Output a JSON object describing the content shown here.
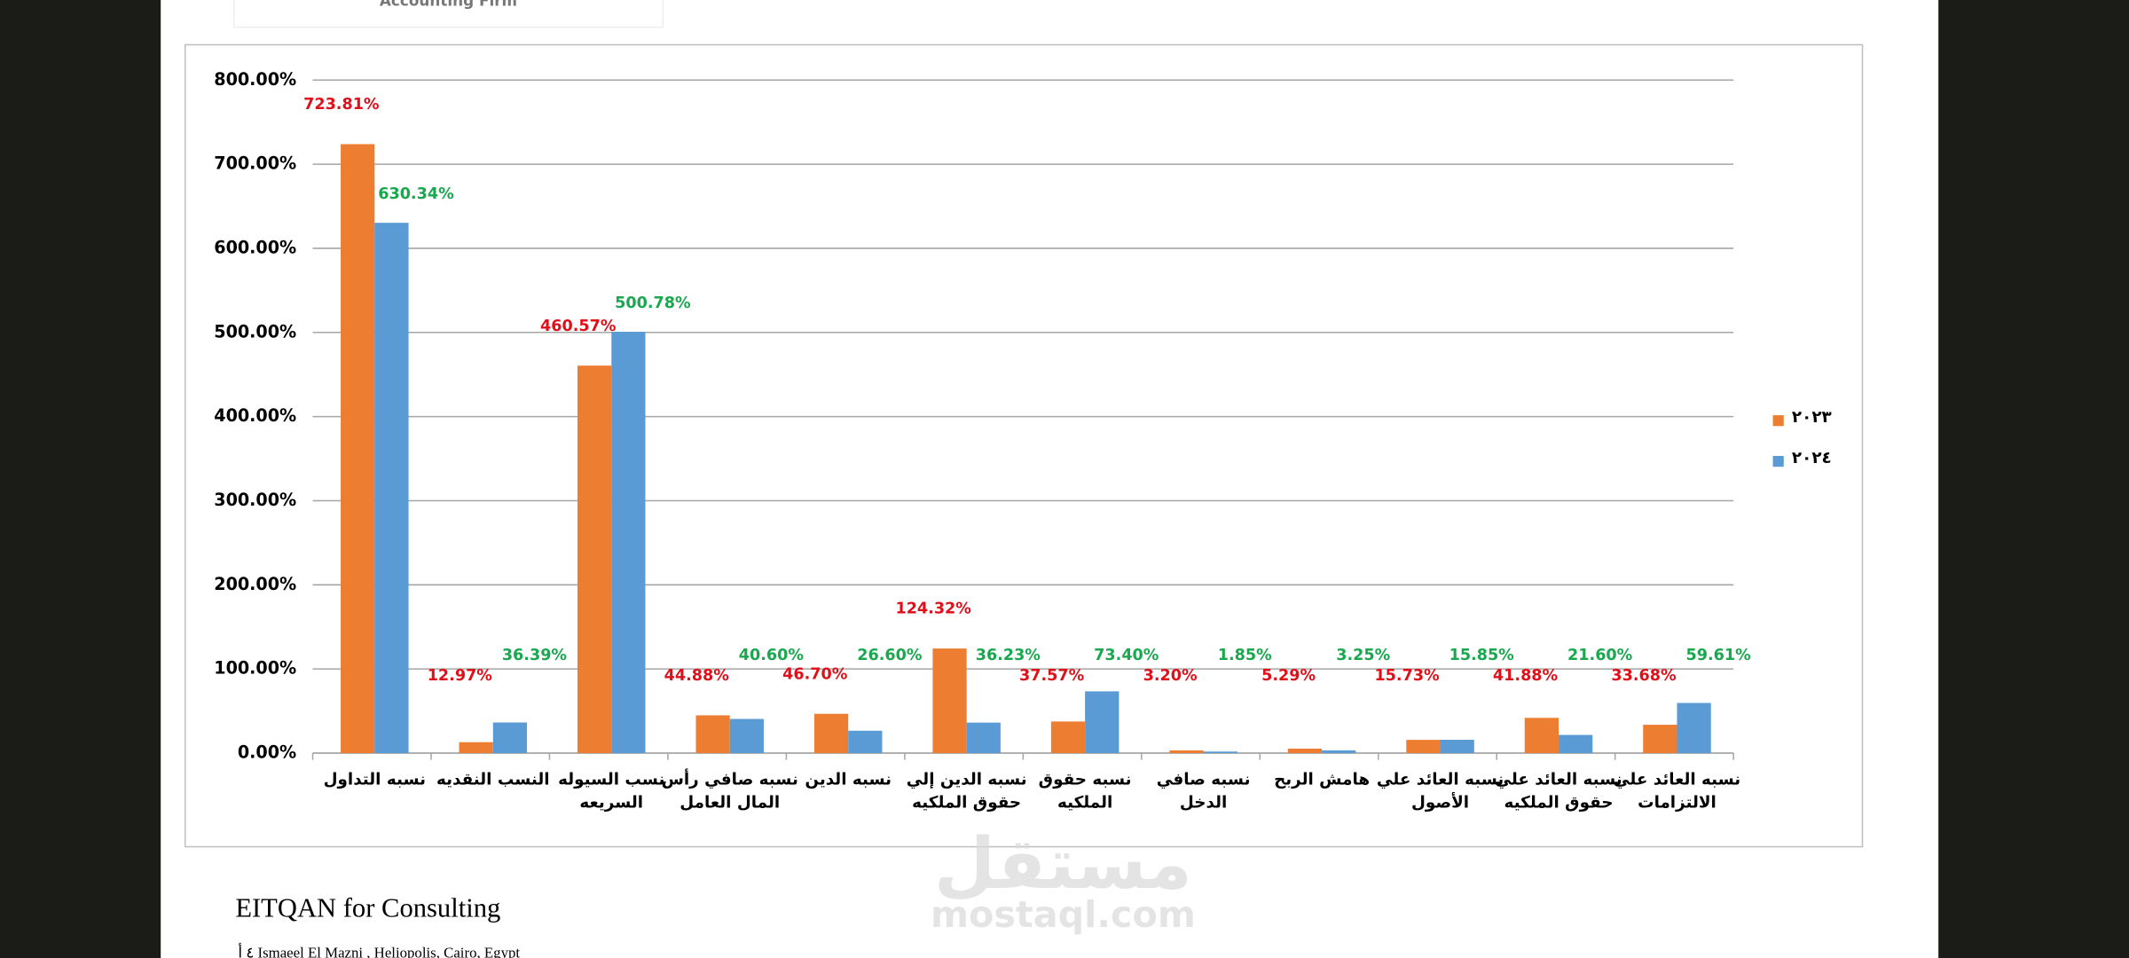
{
  "header": {
    "text": "Accounting Firm"
  },
  "chart_data": {
    "type": "bar",
    "categories": [
      [
        "نسبه التداول"
      ],
      [
        "النسب النقديه"
      ],
      [
        "نسب السيوله",
        "السريعه"
      ],
      [
        "نسبه صافي رأس",
        "المال العامل"
      ],
      [
        "نسبه الدين"
      ],
      [
        "نسبه الدين إلي",
        "حقوق الملكيه"
      ],
      [
        "نسبه حقوق",
        "الملكيه"
      ],
      [
        "نسبه صافي",
        "الدخل"
      ],
      [
        "هامش الربح"
      ],
      [
        "نسبه العائد علي",
        "الأصول"
      ],
      [
        "نسبه العائد علي",
        "حقوق الملكيه"
      ],
      [
        "نسبه العائد علي",
        "الالتزامات"
      ]
    ],
    "series": [
      {
        "name": "٢٠٢٣",
        "color": "#ed7d31",
        "label_color": "#e0101a",
        "values": [
          723.81,
          12.97,
          460.57,
          44.88,
          46.7,
          124.32,
          37.57,
          3.2,
          5.29,
          15.73,
          41.88,
          33.68
        ],
        "value_labels": [
          "723.81%",
          "12.97%",
          "460.57%",
          "44.88%",
          "46.70%",
          "124.32%",
          "37.57%",
          "3.20%",
          "5.29%",
          "15.73%",
          "41.88%",
          "33.68%"
        ]
      },
      {
        "name": "٢٠٢٤",
        "color": "#5b9bd5",
        "label_color": "#1aa84f",
        "values": [
          630.34,
          36.39,
          500.78,
          40.6,
          26.6,
          36.23,
          73.4,
          1.85,
          3.25,
          15.85,
          21.6,
          59.61
        ],
        "value_labels": [
          "630.34%",
          "36.39%",
          "500.78%",
          "40.60%",
          "26.60%",
          "36.23%",
          "73.40%",
          "1.85%",
          "3.25%",
          "15.85%",
          "21.60%",
          "59.61%"
        ]
      }
    ],
    "ylim": [
      0,
      800
    ],
    "yticks": [
      {
        "value": 0,
        "label": "0.00%"
      },
      {
        "value": 100,
        "label": "100.00%"
      },
      {
        "value": 200,
        "label": "200.00%"
      },
      {
        "value": 300,
        "label": "300.00%"
      },
      {
        "value": 400,
        "label": "400.00%"
      },
      {
        "value": 500,
        "label": "500.00%"
      },
      {
        "value": 600,
        "label": "600.00%"
      },
      {
        "value": 700,
        "label": "700.00%"
      },
      {
        "value": 800,
        "label": "800.00%"
      }
    ],
    "grid": true,
    "legend": "right"
  },
  "footer": {
    "company": "EITQAN for Consulting",
    "address": "٤ أ Ismaeel El Mazni , Heliopolis, Cairo, Egypt"
  },
  "watermark": {
    "arabic": "مستقل",
    "latin": "mostaql.com"
  }
}
